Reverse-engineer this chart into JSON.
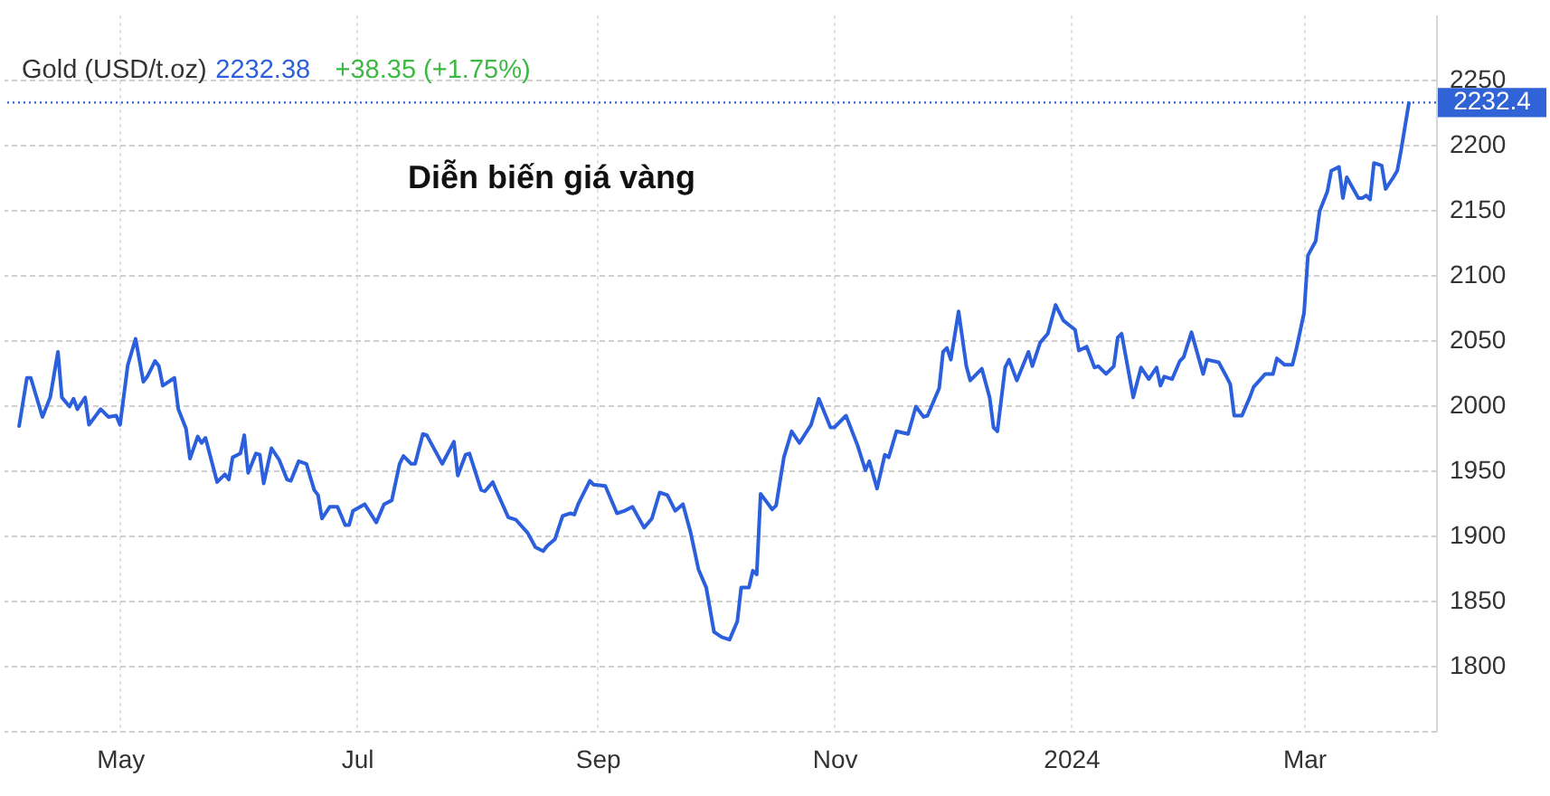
{
  "chart_data": {
    "type": "line",
    "title": "Diễn biến giá vàng",
    "subtitle": "Gold (USD/t.oz)",
    "annotations": [
      "2232.38",
      "+38.35 (+1.75%)"
    ],
    "x": [
      "2023-04-05",
      "2023-04-07",
      "2023-04-08",
      "2023-04-11",
      "2023-04-13",
      "2023-04-15",
      "2023-04-16",
      "2023-04-18",
      "2023-04-19",
      "2023-04-20",
      "2023-04-22",
      "2023-04-23",
      "2023-04-26",
      "2023-04-28",
      "2023-04-30",
      "2023-05-01",
      "2023-05-03",
      "2023-05-05",
      "2023-05-07",
      "2023-05-08",
      "2023-05-10",
      "2023-05-11",
      "2023-05-12",
      "2023-05-15",
      "2023-05-16",
      "2023-05-18",
      "2023-05-19",
      "2023-05-21",
      "2023-05-22",
      "2023-05-23",
      "2023-05-26",
      "2023-05-28",
      "2023-05-29",
      "2023-05-30",
      "2023-06-01",
      "2023-06-02",
      "2023-06-03",
      "2023-06-05",
      "2023-06-06",
      "2023-06-07",
      "2023-06-09",
      "2023-06-11",
      "2023-06-13",
      "2023-06-14",
      "2023-06-16",
      "2023-06-18",
      "2023-06-20",
      "2023-06-21",
      "2023-06-22",
      "2023-06-24",
      "2023-06-26",
      "2023-06-28",
      "2023-06-29",
      "2023-06-30",
      "2023-07-03",
      "2023-07-06",
      "2023-07-08",
      "2023-07-10",
      "2023-07-12",
      "2023-07-13",
      "2023-07-15",
      "2023-07-16",
      "2023-07-18",
      "2023-07-19",
      "2023-07-23",
      "2023-07-26",
      "2023-07-27",
      "2023-07-29",
      "2023-07-30",
      "2023-08-02",
      "2023-08-03",
      "2023-08-05",
      "2023-08-06",
      "2023-08-09",
      "2023-08-11",
      "2023-08-14",
      "2023-08-16",
      "2023-08-18",
      "2023-08-19",
      "2023-08-21",
      "2023-08-23",
      "2023-08-25",
      "2023-08-26",
      "2023-08-27",
      "2023-08-30",
      "2023-08-31",
      "2023-09-03",
      "2023-09-06",
      "2023-09-08",
      "2023-09-10",
      "2023-09-13",
      "2023-09-15",
      "2023-09-17",
      "2023-09-19",
      "2023-09-21",
      "2023-09-23",
      "2023-09-25",
      "2023-09-27",
      "2023-09-29",
      "2023-10-01",
      "2023-10-03",
      "2023-10-05",
      "2023-10-07",
      "2023-10-08",
      "2023-10-10",
      "2023-10-11",
      "2023-10-12",
      "2023-10-13",
      "2023-10-16",
      "2023-10-17",
      "2023-10-19",
      "2023-10-21",
      "2023-10-23",
      "2023-10-26",
      "2023-10-28",
      "2023-10-31",
      "2023-11-01",
      "2023-11-04",
      "2023-11-07",
      "2023-11-09",
      "2023-11-10",
      "2023-11-12",
      "2023-11-14",
      "2023-11-15",
      "2023-11-17",
      "2023-11-20",
      "2023-11-22",
      "2023-11-24",
      "2023-11-25",
      "2023-11-28",
      "2023-11-29",
      "2023-11-30",
      "2023-12-01",
      "2023-12-03",
      "2023-12-05",
      "2023-12-06",
      "2023-12-09",
      "2023-12-11",
      "2023-12-12",
      "2023-12-13",
      "2023-12-15",
      "2023-12-16",
      "2023-12-18",
      "2023-12-21",
      "2023-12-22",
      "2023-12-24",
      "2023-12-26",
      "2023-12-28",
      "2023-12-30",
      "2024-01-02",
      "2024-01-03",
      "2024-01-05",
      "2024-01-07",
      "2024-01-08",
      "2024-01-10",
      "2024-01-12",
      "2024-01-13",
      "2024-01-14",
      "2024-01-17",
      "2024-01-19",
      "2024-01-21",
      "2024-01-23",
      "2024-01-24",
      "2024-01-25",
      "2024-01-27",
      "2024-01-29",
      "2024-01-30",
      "2024-02-01",
      "2024-02-04",
      "2024-02-05",
      "2024-02-08",
      "2024-02-10",
      "2024-02-11",
      "2024-02-12",
      "2024-02-14",
      "2024-02-16",
      "2024-02-17",
      "2024-02-20",
      "2024-02-22",
      "2024-02-23",
      "2024-02-25",
      "2024-02-27",
      "2024-02-28",
      "2024-03-01",
      "2024-03-02",
      "2024-03-04",
      "2024-03-05",
      "2024-03-07",
      "2024-03-08",
      "2024-03-10",
      "2024-03-11",
      "2024-03-12",
      "2024-03-15",
      "2024-03-16",
      "2024-03-17",
      "2024-03-18",
      "2024-03-19",
      "2024-03-21",
      "2024-03-22",
      "2024-03-24",
      "2024-03-25",
      "2024-03-26",
      "2024-03-28"
    ],
    "series": [
      {
        "color": "#2b5fdb",
        "values": [
          1984,
          2021,
          2021,
          1991,
          2006,
          2041,
          2006,
          1999,
          2005,
          1997,
          2006,
          1985,
          1997,
          1991,
          1992,
          1985,
          2031,
          2051,
          2018,
          2022,
          2034,
          2030,
          2015,
          2021,
          1997,
          1982,
          1959,
          1976,
          1971,
          1975,
          1941,
          1947,
          1943,
          1960,
          1963,
          1977,
          1948,
          1963,
          1962,
          1940,
          1967,
          1958,
          1943,
          1942,
          1957,
          1955,
          1935,
          1931,
          1913,
          1922,
          1922,
          1908,
          1908,
          1919,
          1924,
          1910,
          1924,
          1927,
          1955,
          1961,
          1955,
          1955,
          1978,
          1977,
          1955,
          1972,
          1946,
          1962,
          1963,
          1935,
          1934,
          1941,
          1934,
          1914,
          1912,
          1902,
          1891,
          1888,
          1892,
          1897,
          1915,
          1917,
          1916,
          1924,
          1942,
          1939,
          1938,
          1917,
          1919,
          1922,
          1906,
          1913,
          1933,
          1931,
          1919,
          1924,
          1902,
          1874,
          1860,
          1826,
          1822,
          1820,
          1834,
          1860,
          1860,
          1873,
          1870,
          1932,
          1920,
          1923,
          1960,
          1980,
          1971,
          1985,
          2005,
          1983,
          1983,
          1992,
          1969,
          1950,
          1957,
          1936,
          1962,
          1960,
          1980,
          1978,
          1999,
          1991,
          1992,
          2013,
          2041,
          2044,
          2035,
          2072,
          2030,
          2019,
          2028,
          2006,
          1983,
          1980,
          2029,
          2035,
          2019,
          2041,
          2030,
          2048,
          2055,
          2077,
          2065,
          2058,
          2042,
          2045,
          2029,
          2030,
          2024,
          2030,
          2052,
          2055,
          2006,
          2029,
          2020,
          2029,
          2015,
          2022,
          2020,
          2034,
          2037,
          2056,
          2024,
          2035,
          2033,
          2022,
          2016,
          1992,
          1992,
          2006,
          2014,
          2024,
          2024,
          2036,
          2031,
          2031,
          2043,
          2071,
          2115,
          2126,
          2149,
          2164,
          2180,
          2183,
          2159,
          2175,
          2159,
          2159,
          2161,
          2158,
          2186,
          2184,
          2166,
          2175,
          2180,
          2196,
          2232
        ]
      }
    ],
    "xlim": [
      "2023-04-01",
      "2024-04-04"
    ],
    "xticks": [
      {
        "value": "2023-05-01",
        "label": "May"
      },
      {
        "value": "2023-07-01",
        "label": "Jul"
      },
      {
        "value": "2023-09-01",
        "label": "Sep"
      },
      {
        "value": "2023-11-01",
        "label": "Nov"
      },
      {
        "value": "2024-01-01",
        "label": "2024"
      },
      {
        "value": "2024-03-01",
        "label": "Mar"
      }
    ],
    "ylim": [
      1750,
      2300
    ],
    "yticks": [
      {
        "value": 1750,
        "label": null
      },
      1800,
      1850,
      1900,
      1950,
      2000,
      2050,
      2100,
      2150,
      2200,
      2250
    ],
    "ref_lines": [
      {
        "axis": "y",
        "value": 2232.4,
        "label": "2232.4",
        "color": "#2f63d6",
        "line_style": "dotted"
      }
    ],
    "grid": true
  }
}
